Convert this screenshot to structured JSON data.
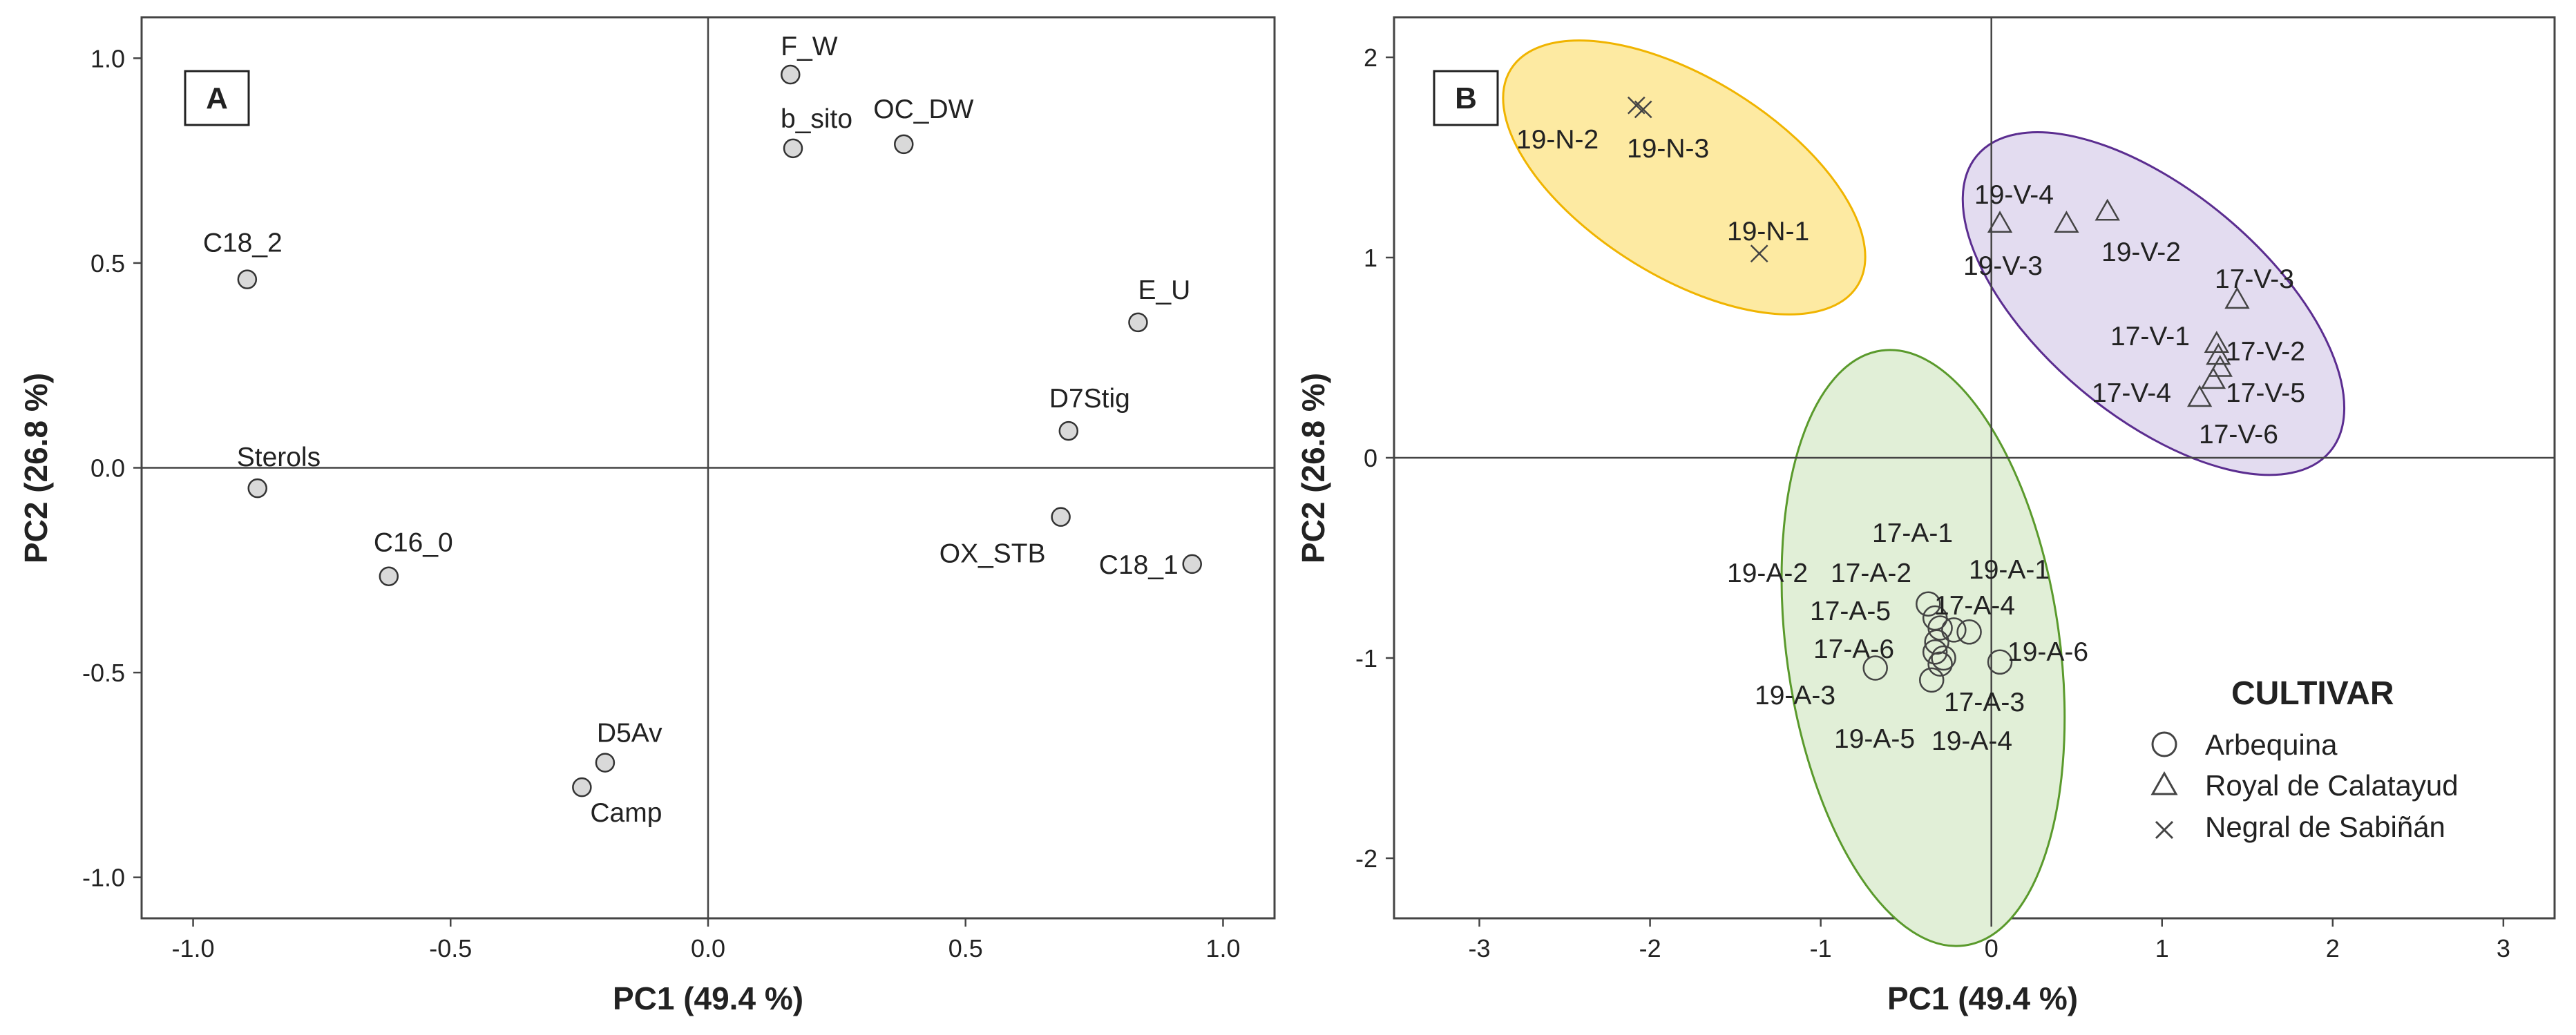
{
  "chart_data": [
    {
      "panel": "A",
      "type": "scatter",
      "xlabel": "PC1 (49.4 %)",
      "ylabel": "PC2 (26.8 %)",
      "xlim": [
        -1.1,
        1.1
      ],
      "ylim": [
        -1.1,
        1.1
      ],
      "xticks": [
        -1.0,
        -0.5,
        0.0,
        0.5,
        1.0
      ],
      "xtick_labels": [
        "-1.0",
        "-0.5",
        "0.0",
        "0.5",
        "1.0"
      ],
      "yticks": [
        -1.0,
        -0.5,
        0.0,
        0.5,
        1.0
      ],
      "ytick_labels": [
        "-1.0",
        "-0.5",
        "0.0",
        "0.5",
        "1.0"
      ],
      "points": [
        {
          "label": "F_W",
          "x": 0.16,
          "y": 0.96
        },
        {
          "label": "b_sito",
          "x": 0.165,
          "y": 0.78
        },
        {
          "label": "OC_DW",
          "x": 0.38,
          "y": 0.79
        },
        {
          "label": "C18_2",
          "x": -0.895,
          "y": 0.46
        },
        {
          "label": "E_U",
          "x": 0.835,
          "y": 0.355
        },
        {
          "label": "D7Stig",
          "x": 0.7,
          "y": 0.09
        },
        {
          "label": "Sterols",
          "x": -0.875,
          "y": -0.05
        },
        {
          "label": "OX_STB",
          "x": 0.685,
          "y": -0.12
        },
        {
          "label": "C18_1",
          "x": 0.94,
          "y": -0.235
        },
        {
          "label": "C16_0",
          "x": -0.62,
          "y": -0.265
        },
        {
          "label": "D5Av",
          "x": -0.2,
          "y": -0.72
        },
        {
          "label": "Camp",
          "x": -0.245,
          "y": -0.78
        }
      ]
    },
    {
      "panel": "B",
      "type": "scatter",
      "xlabel": "PC1 (49.4 %)",
      "ylabel": "PC2 (26.8 %)",
      "xlim": [
        -3.5,
        3.3
      ],
      "ylim": [
        -2.3,
        2.2
      ],
      "xticks": [
        -3,
        -2,
        -1,
        0,
        1,
        2,
        3
      ],
      "xtick_labels": [
        "-3",
        "-2",
        "-1",
        "0",
        "1",
        "2",
        "3"
      ],
      "yticks": [
        -2,
        -1,
        0,
        1,
        2
      ],
      "ytick_labels": [
        "-2",
        "-1",
        "0",
        "1",
        "2"
      ],
      "legend": {
        "title": "CULTIVAR",
        "entries": [
          {
            "name": "Arbequina",
            "marker": "circle"
          },
          {
            "name": "Royal de Calatayud",
            "marker": "triangle"
          },
          {
            "name": "Negral de Sabiñán",
            "marker": "cross"
          }
        ]
      },
      "ellipses": [
        {
          "group": "Negral de Sabiñán",
          "cx": -1.8,
          "cy": 1.4,
          "rx": 0.58,
          "ry": 1.02,
          "angle_deg": 58,
          "fill": "#fdeaa2",
          "stroke": "#f0b400"
        },
        {
          "group": "Royal de Calatayud",
          "cx": 0.95,
          "cy": 0.77,
          "rx": 0.66,
          "ry": 1.15,
          "angle_deg": 50,
          "fill": "#e3dcf0",
          "stroke": "#5b2d90"
        },
        {
          "group": "Arbequina",
          "cx": -0.4,
          "cy": -0.95,
          "rx": 0.8,
          "ry": 1.5,
          "angle_deg": 8,
          "fill": "#e1efd7",
          "stroke": "#5a9a2c"
        }
      ],
      "series": [
        {
          "name": "Negral de Sabiñán",
          "marker": "cross",
          "points": [
            {
              "label": "19-N-2",
              "x": -2.08,
              "y": 1.76
            },
            {
              "label": "19-N-3",
              "x": -2.04,
              "y": 1.74
            },
            {
              "label": "19-N-1",
              "x": -1.36,
              "y": 1.02
            }
          ]
        },
        {
          "name": "Royal de Calatayud",
          "marker": "triangle",
          "points": [
            {
              "label": "19-V-4",
              "x": 0.05,
              "y": 1.17
            },
            {
              "label": "19-V-3",
              "x": 0.44,
              "y": 1.17
            },
            {
              "label": "19-V-2",
              "x": 0.68,
              "y": 1.23
            },
            {
              "label": "17-V-3",
              "x": 1.44,
              "y": 0.79
            },
            {
              "label": "17-V-1",
              "x": 1.32,
              "y": 0.57
            },
            {
              "label": "17-V-2",
              "x": 1.33,
              "y": 0.51
            },
            {
              "label": "17-V-5",
              "x": 1.3,
              "y": 0.39
            },
            {
              "label": "17-V-4",
              "x": 1.34,
              "y": 0.45
            },
            {
              "label": "17-V-6",
              "x": 1.22,
              "y": 0.3
            }
          ]
        },
        {
          "name": "Arbequina",
          "marker": "circle",
          "points": [
            {
              "label": "17-A-1",
              "x": -0.33,
              "y": -0.8
            },
            {
              "label": "19-A-2",
              "x": -0.37,
              "y": -0.73
            },
            {
              "label": "17-A-2",
              "x": -0.3,
              "y": -0.85
            },
            {
              "label": "19-A-1",
              "x": -0.22,
              "y": -0.86
            },
            {
              "label": "17-A-4",
              "x": -0.13,
              "y": -0.87
            },
            {
              "label": "17-A-5",
              "x": -0.32,
              "y": -0.92
            },
            {
              "label": "17-A-6",
              "x": -0.33,
              "y": -0.97
            },
            {
              "label": "19-A-6",
              "x": 0.05,
              "y": -1.02
            },
            {
              "label": "19-A-3",
              "x": -0.68,
              "y": -1.05
            },
            {
              "label": "17-A-3",
              "x": -0.28,
              "y": -1.0
            },
            {
              "label": "19-A-5",
              "x": -0.35,
              "y": -1.11
            },
            {
              "label": "19-A-4",
              "x": -0.3,
              "y": -1.03
            }
          ]
        }
      ]
    }
  ],
  "panels": {
    "a_label": "A",
    "b_label": "B"
  }
}
